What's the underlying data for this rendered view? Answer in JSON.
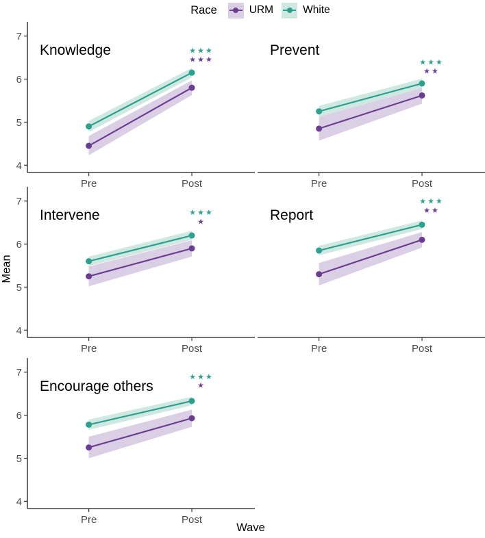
{
  "legend": {
    "title": "Race",
    "series": [
      {
        "label": "URM",
        "color": "#6B3E91",
        "fill": "#DACFE4"
      },
      {
        "label": "White",
        "color": "#2DA18D",
        "fill": "#CFE9E2"
      }
    ]
  },
  "axes": {
    "y_title": "Mean",
    "x_title": "Wave",
    "y_ticks": [
      4,
      5,
      6,
      7
    ],
    "x_categories": [
      "Pre",
      "Post"
    ],
    "y_domain": [
      3.83,
      7.33
    ]
  },
  "chart_data": {
    "type": "line",
    "x": [
      "Pre",
      "Post"
    ],
    "xlabel": "Wave",
    "ylabel": "Mean",
    "ylim": [
      4,
      7
    ],
    "legend_position": "top",
    "facets": [
      {
        "id": "knowledge",
        "title": "Knowledge",
        "stars": {
          "white": "***",
          "white_y": 6.67,
          "urm": "***",
          "urm_y": 6.46
        },
        "series": [
          {
            "name": "URM",
            "values": [
              4.45,
              5.8
            ],
            "ribbon_low": [
              4.23,
              5.63
            ],
            "ribbon_high": [
              4.68,
              5.97
            ]
          },
          {
            "name": "White",
            "values": [
              4.9,
              6.15
            ],
            "ribbon_low": [
              4.77,
              6.04
            ],
            "ribbon_high": [
              5.03,
              6.26
            ]
          }
        ]
      },
      {
        "id": "prevent",
        "title": "Prevent",
        "stars": {
          "white": "***",
          "white_y": 6.4,
          "urm": "**",
          "urm_y": 6.19
        },
        "series": [
          {
            "name": "URM",
            "values": [
              4.85,
              5.62
            ],
            "ribbon_low": [
              4.57,
              5.43
            ],
            "ribbon_high": [
              5.12,
              5.82
            ]
          },
          {
            "name": "White",
            "values": [
              5.25,
              5.9
            ],
            "ribbon_low": [
              5.12,
              5.79
            ],
            "ribbon_high": [
              5.38,
              6.01
            ]
          }
        ]
      },
      {
        "id": "intervene",
        "title": "Intervene",
        "stars": {
          "white": "***",
          "white_y": 6.74,
          "urm": "*",
          "urm_y": 6.53
        },
        "series": [
          {
            "name": "URM",
            "values": [
              5.25,
              5.9
            ],
            "ribbon_low": [
              5.02,
              5.71
            ],
            "ribbon_high": [
              5.48,
              6.09
            ]
          },
          {
            "name": "White",
            "values": [
              5.6,
              6.2
            ],
            "ribbon_low": [
              5.49,
              6.1
            ],
            "ribbon_high": [
              5.71,
              6.31
            ]
          }
        ]
      },
      {
        "id": "report",
        "title": "Report",
        "stars": {
          "white": "***",
          "white_y": 7.0,
          "urm": "**",
          "urm_y": 6.79
        },
        "series": [
          {
            "name": "URM",
            "values": [
              5.3,
              6.1
            ],
            "ribbon_low": [
              5.04,
              5.92
            ],
            "ribbon_high": [
              5.56,
              6.28
            ]
          },
          {
            "name": "White",
            "values": [
              5.85,
              6.45
            ],
            "ribbon_low": [
              5.74,
              6.35
            ],
            "ribbon_high": [
              5.96,
              6.55
            ]
          }
        ]
      },
      {
        "id": "encourage-others",
        "title": "Encourage others",
        "stars": {
          "white": "***",
          "white_y": 6.9,
          "urm": "*",
          "urm_y": 6.7
        },
        "series": [
          {
            "name": "URM",
            "values": [
              5.25,
              5.93
            ],
            "ribbon_low": [
              5.0,
              5.73
            ],
            "ribbon_high": [
              5.5,
              6.13
            ]
          },
          {
            "name": "White",
            "values": [
              5.78,
              6.33
            ],
            "ribbon_low": [
              5.66,
              6.23
            ],
            "ribbon_high": [
              5.9,
              6.43
            ]
          }
        ]
      }
    ]
  }
}
